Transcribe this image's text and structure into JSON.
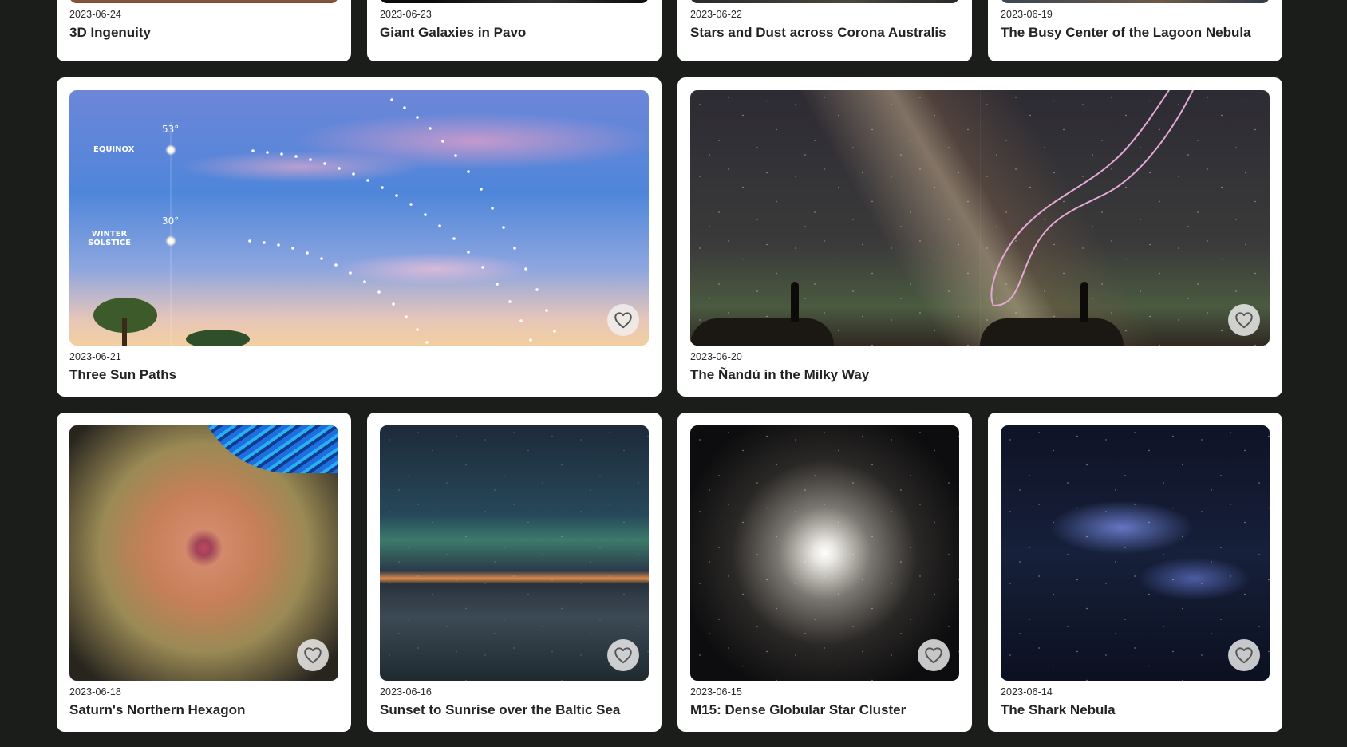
{
  "cards": [
    {
      "date": "2023-06-24",
      "title": "3D Ingenuity",
      "favorite_icon": "heart-icon"
    },
    {
      "date": "2023-06-23",
      "title": "Giant Galaxies in Pavo",
      "favorite_icon": "heart-icon"
    },
    {
      "date": "2023-06-22",
      "title": "Stars and Dust across Corona Australis",
      "favorite_icon": "heart-icon"
    },
    {
      "date": "2023-06-19",
      "title": "The Busy Center of the Lagoon Nebula",
      "favorite_icon": "heart-icon"
    },
    {
      "date": "2023-06-21",
      "title": "Three Sun Paths",
      "favorite_icon": "heart-icon",
      "image_labels": {
        "equinox": "EQUINOX",
        "equinox_angle": "53°",
        "winter": "WINTER SOLSTICE",
        "winter_angle": "30°"
      }
    },
    {
      "date": "2023-06-20",
      "title": "The Ñandú in the Milky Way",
      "favorite_icon": "heart-icon"
    },
    {
      "date": "2023-06-18",
      "title": "Saturn's Northern Hexagon",
      "favorite_icon": "heart-icon"
    },
    {
      "date": "2023-06-16",
      "title": "Sunset to Sunrise over the Baltic Sea",
      "favorite_icon": "heart-icon"
    },
    {
      "date": "2023-06-15",
      "title": "M15: Dense Globular Star Cluster",
      "favorite_icon": "heart-icon"
    },
    {
      "date": "2023-06-14",
      "title": "The Shark Nebula",
      "favorite_icon": "heart-icon"
    }
  ],
  "colors": {
    "page_background": "#1b1d1b",
    "card_background": "#ffffff",
    "text": "#232323"
  }
}
